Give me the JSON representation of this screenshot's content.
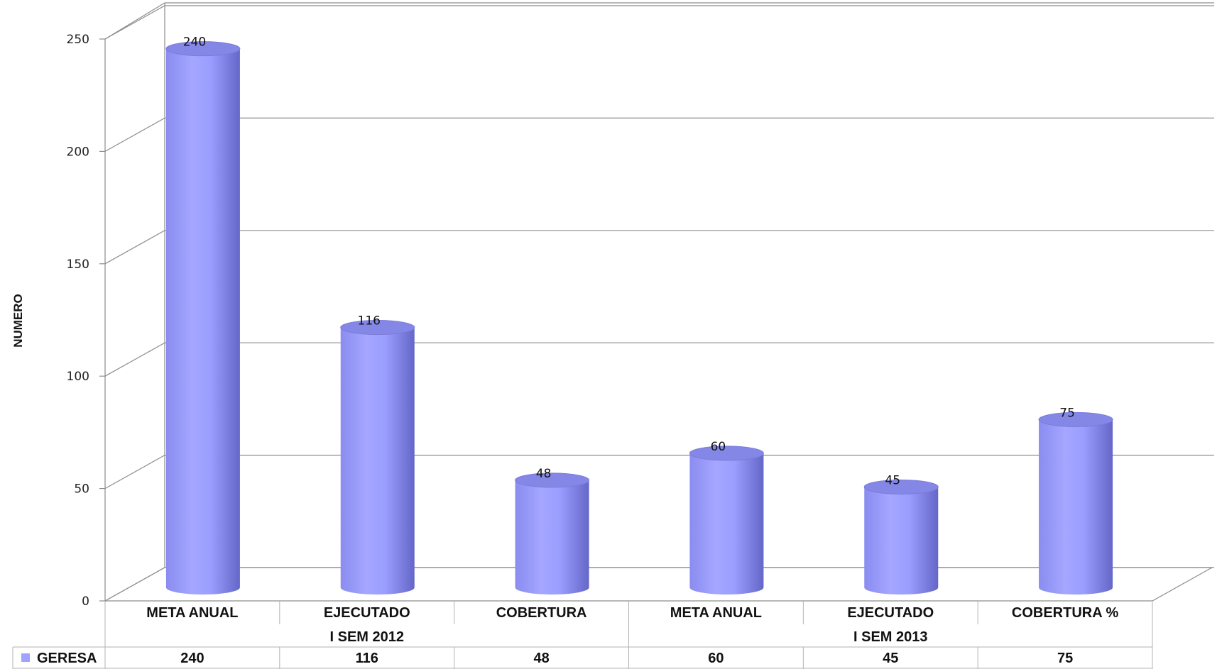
{
  "chart_data": {
    "type": "bar",
    "style": "3d-cylinder",
    "title": "",
    "xlabel": "",
    "ylabel": "NUMERO",
    "ylim": [
      0,
      250
    ],
    "yticks": [
      0,
      50,
      100,
      150,
      200,
      250
    ],
    "grid": true,
    "categories": [
      "META ANUAL",
      "EJECUTADO",
      "COBERTURA",
      "META ANUAL",
      "EJECUTADO",
      "COBERTURA %"
    ],
    "groups": [
      {
        "label": "I SEM 2012",
        "span": [
          0,
          2
        ]
      },
      {
        "label": "I SEM 2013",
        "span": [
          3,
          5
        ]
      }
    ],
    "series": [
      {
        "name": "GERESA",
        "color": "#a0a2ff",
        "values": [
          240,
          116,
          48,
          60,
          45,
          75
        ]
      }
    ],
    "data_table": true,
    "legend_position": "data-table"
  },
  "colors": {
    "bar": "#a0a2ff",
    "bar_dark": "#6e70d6",
    "bar_top": "#8587e6",
    "grid": "#8c8c8c"
  }
}
